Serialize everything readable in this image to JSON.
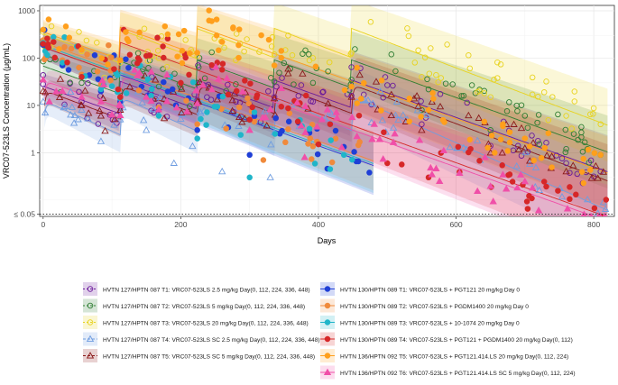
{
  "chart_data": {
    "type": "scatter",
    "xlabel": "Days",
    "ylabel": "VRC07-523LS Concentration (μg/mL)",
    "xlim": [
      -5,
      830
    ],
    "x_ticks": [
      0,
      200,
      400,
      600,
      800
    ],
    "x_tick_labels": [
      "0",
      "200",
      "400",
      "600",
      "800"
    ],
    "y_scale": "log",
    "ylim": [
      0.045,
      1300
    ],
    "y_ticks": [
      0.05,
      1,
      10,
      100,
      1000
    ],
    "y_tick_labels": [
      "≤ 0.05",
      "1",
      "10",
      "100",
      "1000"
    ],
    "lloq": 0.05,
    "grid": true,
    "legend_position": "bottom",
    "series": [
      {
        "name": "HVTN 127/HPTN 087 T1: VRC07-523LS 2.5 mg/kg Day(0, 112, 224, 336, 448)",
        "color": "#6a1b9a",
        "marker": "circle-open",
        "dose_days": [
          0,
          112,
          224,
          336,
          448
        ],
        "peak": 30,
        "trough_end": 0.4,
        "values_sample": [
          [
            0,
            28
          ],
          [
            56,
            12
          ],
          [
            112,
            9
          ],
          [
            168,
            10
          ],
          [
            224,
            13
          ],
          [
            280,
            12
          ],
          [
            336,
            15
          ],
          [
            392,
            12
          ],
          [
            448,
            16
          ],
          [
            550,
            4
          ],
          [
            650,
            1.4
          ],
          [
            760,
            0.6
          ],
          [
            810,
            0.4
          ]
        ]
      },
      {
        "name": "HVTN 127/HPTN 087 T2: VRC07-523LS 5 mg/kg Day(0, 112, 224, 336, 448)",
        "color": "#2e7d32",
        "marker": "circle-open",
        "dose_days": [
          0,
          112,
          224,
          336,
          448
        ],
        "peak": 80,
        "trough_end": 0.8,
        "values_sample": [
          [
            0,
            85
          ],
          [
            56,
            30
          ],
          [
            112,
            20
          ],
          [
            168,
            25
          ],
          [
            224,
            30
          ],
          [
            280,
            28
          ],
          [
            336,
            32
          ],
          [
            392,
            30
          ],
          [
            448,
            35
          ],
          [
            550,
            8
          ],
          [
            650,
            3
          ],
          [
            760,
            1.2
          ],
          [
            810,
            0.9
          ]
        ]
      },
      {
        "name": "HVTN 127/HPTN 087 T3: VRC07-523LS 20 mg/kg Day(0, 112, 224, 336, 448)",
        "color": "#e8d31f",
        "marker": "circle-open",
        "dose_days": [
          0,
          112,
          224,
          336,
          448
        ],
        "peak": 380,
        "trough_end": 3,
        "values_sample": [
          [
            0,
            360
          ],
          [
            56,
            140
          ],
          [
            112,
            80
          ],
          [
            168,
            100
          ],
          [
            224,
            110
          ],
          [
            280,
            90
          ],
          [
            336,
            120
          ],
          [
            392,
            100
          ],
          [
            448,
            130
          ],
          [
            550,
            40
          ],
          [
            650,
            15
          ],
          [
            760,
            6
          ],
          [
            810,
            4
          ]
        ]
      },
      {
        "name": "HVTN 127/HPTN 087 T4: VRC07-523LS SC 2.5 mg/kg Day(0, 112, 224, 336, 448)",
        "color": "#6f9de0",
        "marker": "triangle-open",
        "dose_days": [
          0,
          112,
          224,
          336,
          448
        ],
        "peak": 15,
        "trough_end": 0.05,
        "values_sample": [
          [
            0,
            12
          ],
          [
            30,
            9
          ],
          [
            56,
            8
          ],
          [
            84,
            6
          ],
          [
            112,
            5
          ],
          [
            150,
            3
          ],
          [
            190,
            0.6
          ],
          [
            260,
            0.4
          ],
          [
            330,
            0.3
          ]
        ]
      },
      {
        "name": "HVTN 127/HPTN 087 T5: VRC07-523LS SC 5 mg/kg Day(0, 112, 224, 336, 448)",
        "color": "#8b1a1a",
        "marker": "triangle-open",
        "dose_days": [
          0,
          112,
          224,
          336,
          448
        ],
        "peak": 25,
        "trough_end": 0.2,
        "values_sample": [
          [
            0,
            20
          ],
          [
            56,
            10
          ],
          [
            112,
            8
          ],
          [
            224,
            12
          ],
          [
            336,
            14
          ],
          [
            448,
            15
          ],
          [
            550,
            3
          ],
          [
            650,
            1
          ],
          [
            760,
            0.4
          ]
        ]
      },
      {
        "name": "HVTN 130/HPTN 089 T1: VRC07-523LS + PGT121 20 mg/kg Day 0",
        "color": "#1f3fd6",
        "marker": "circle-filled",
        "dose_days": [
          0
        ],
        "peak": 200,
        "trough_end": 0.05,
        "values_sample": [
          [
            0,
            190
          ],
          [
            28,
            70
          ],
          [
            56,
            40
          ],
          [
            84,
            20
          ],
          [
            112,
            12
          ],
          [
            168,
            8
          ],
          [
            224,
            3
          ],
          [
            300,
            0.9
          ]
        ]
      },
      {
        "name": "HVTN 130/HPTN 089 T2: VRC07-523LS + PGDM1400 20 mg/kg Day 0",
        "color": "#f08a3c",
        "marker": "circle-filled",
        "dose_days": [
          0
        ],
        "peak": 250,
        "trough_end": 0.05,
        "values_sample": [
          [
            0,
            240
          ],
          [
            28,
            90
          ],
          [
            56,
            45
          ],
          [
            84,
            28
          ],
          [
            112,
            15
          ],
          [
            168,
            9
          ],
          [
            224,
            4
          ],
          [
            320,
            0.7
          ]
        ]
      },
      {
        "name": "HVTN 130/HPTN 089 T3: VRC07-523LS + 10-1074 20 mg/kg Day 0",
        "color": "#1fb5c9",
        "marker": "circle-filled",
        "dose_days": [
          0
        ],
        "peak": 220,
        "trough_end": 0.05,
        "values_sample": [
          [
            0,
            210
          ],
          [
            28,
            80
          ],
          [
            56,
            40
          ],
          [
            84,
            22
          ],
          [
            112,
            14
          ],
          [
            168,
            6
          ],
          [
            224,
            2
          ],
          [
            300,
            0.3
          ]
        ]
      },
      {
        "name": "HVTN 130/HPTN 089 T4: VRC07-523LS + PGT121 + PGDM1400 20 mg/kg Day(0, 112)",
        "color": "#d62728",
        "marker": "circle-filled",
        "dose_days": [
          0,
          112
        ],
        "peak": 200,
        "trough_end": 0.05,
        "values_sample": [
          [
            0,
            200
          ],
          [
            56,
            40
          ],
          [
            112,
            15
          ],
          [
            140,
            90
          ],
          [
            200,
            30
          ],
          [
            300,
            5
          ],
          [
            400,
            1.5
          ],
          [
            500,
            0.6
          ],
          [
            560,
            0.3
          ]
        ]
      },
      {
        "name": "HVTN 136/HPTN 092 T5: VRC07-523LS + PGT121.414.LS 20 mg/kg Day(0, 112, 224)",
        "color": "#ff9f1c",
        "marker": "circle-filled",
        "dose_days": [
          0,
          112,
          224
        ],
        "peak": 420,
        "trough_end": 0.5,
        "values_sample": [
          [
            0,
            400
          ],
          [
            56,
            150
          ],
          [
            112,
            90
          ],
          [
            140,
            350
          ],
          [
            224,
            130
          ],
          [
            260,
            220
          ],
          [
            336,
            70
          ],
          [
            448,
            25
          ],
          [
            560,
            8
          ],
          [
            700,
            2
          ],
          [
            810,
            0.9
          ]
        ]
      },
      {
        "name": "HVTN 136/HPTN 092 T6: VRC07-523LS + PGT121.414.LS SC 5 mg/kg Day(0, 112, 224)",
        "color": "#f04fa8",
        "marker": "triangle-filled",
        "dose_days": [
          0,
          112,
          224
        ],
        "peak": 40,
        "trough_end": 0.05,
        "values_sample": [
          [
            0,
            35
          ],
          [
            28,
            20
          ],
          [
            56,
            15
          ],
          [
            84,
            12
          ],
          [
            112,
            10
          ],
          [
            150,
            15
          ],
          [
            224,
            11
          ],
          [
            300,
            3
          ],
          [
            380,
            0.8
          ]
        ]
      }
    ]
  }
}
